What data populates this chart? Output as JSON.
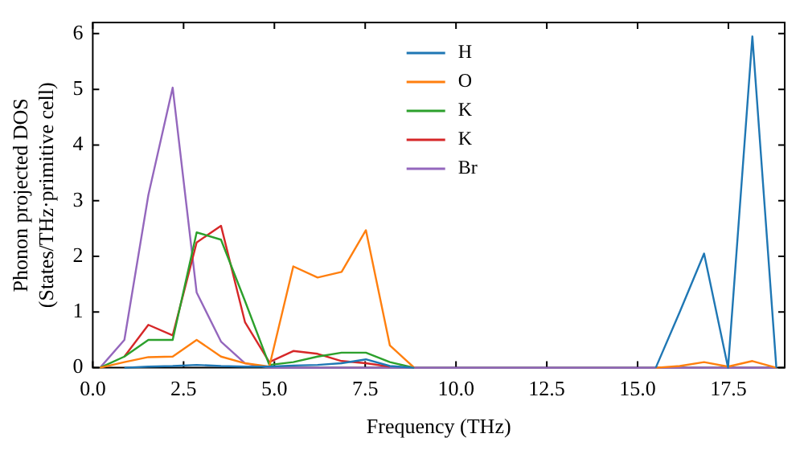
{
  "chart_data": {
    "type": "line",
    "xlabel": "Frequency (THz)",
    "ylabel": "Phonon projected DOS\n(States/THz·primitive cell)",
    "x": [
      0.2,
      0.87,
      1.53,
      2.2,
      2.86,
      3.53,
      4.19,
      4.86,
      5.52,
      6.19,
      6.85,
      7.52,
      8.18,
      8.85,
      9.51,
      10.18,
      10.84,
      11.51,
      12.17,
      12.84,
      13.5,
      14.17,
      14.83,
      15.5,
      16.16,
      16.83,
      17.49,
      18.16,
      18.82
    ],
    "series": [
      {
        "name": "H",
        "color": "#1f77b4",
        "values": [
          null,
          0,
          0.02,
          0.03,
          0.05,
          0.03,
          0.02,
          0.02,
          0.04,
          0.05,
          0.08,
          0.15,
          0.03,
          0,
          null,
          null,
          null,
          null,
          null,
          null,
          null,
          null,
          null,
          0,
          1.0,
          2.05,
          0,
          5.95,
          0
        ]
      },
      {
        "name": "O",
        "color": "#ff7f0e",
        "values": [
          0,
          0.1,
          0.19,
          0.2,
          0.5,
          0.2,
          0.08,
          0.02,
          1.82,
          1.62,
          1.72,
          2.47,
          0.4,
          0,
          null,
          null,
          null,
          null,
          null,
          null,
          null,
          null,
          null,
          0,
          0.03,
          0.1,
          0.02,
          0.12,
          0
        ]
      },
      {
        "name": "K",
        "color": "#2ca02c",
        "values": [
          0,
          0.2,
          0.5,
          0.5,
          2.43,
          2.3,
          1.2,
          0.05,
          0.1,
          0.2,
          0.27,
          0.27,
          0.1,
          0,
          null,
          null,
          null,
          null,
          null,
          null,
          null,
          null,
          null,
          null,
          null,
          null,
          null,
          null,
          null
        ]
      },
      {
        "name": "K",
        "color": "#d62728",
        "values": [
          null,
          0.2,
          0.77,
          0.58,
          2.25,
          2.55,
          0.82,
          0.1,
          0.3,
          0.25,
          0.12,
          0.08,
          0.02,
          null,
          null,
          null,
          null,
          null,
          null,
          null,
          null,
          null,
          null,
          null,
          null,
          null,
          null,
          null,
          null
        ]
      },
      {
        "name": "Br",
        "color": "#9467bd",
        "values": [
          0,
          0.5,
          3.1,
          5.03,
          1.35,
          0.47,
          0.08,
          0,
          0,
          0,
          0,
          0,
          0,
          0,
          0,
          0,
          0,
          0,
          0,
          0,
          0,
          0,
          0,
          0,
          0,
          0,
          0,
          0,
          0
        ]
      }
    ],
    "xlim": [
      0,
      19.05
    ],
    "ylim": [
      0,
      6.2
    ],
    "xticks": [
      {
        "value": 0,
        "label": "0.0"
      },
      {
        "value": 2.5,
        "label": "2.5"
      },
      {
        "value": 5,
        "label": "5.0"
      },
      {
        "value": 7.5,
        "label": "7.5"
      },
      {
        "value": 10,
        "label": "10.0"
      },
      {
        "value": 12.5,
        "label": "12.5"
      },
      {
        "value": 15,
        "label": "15.0"
      },
      {
        "value": 17.5,
        "label": "17.5"
      }
    ],
    "yticks": [
      0,
      1,
      2,
      3,
      4,
      5,
      6
    ],
    "legend": "top",
    "grid": false,
    "marker": "none",
    "line_style": "solid"
  }
}
